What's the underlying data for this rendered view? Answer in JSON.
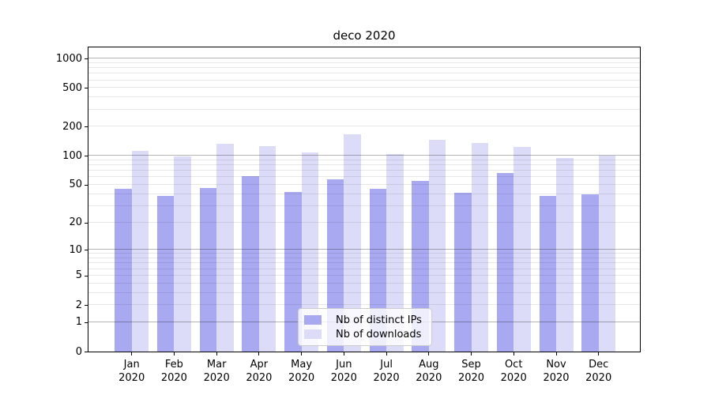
{
  "chart_data": {
    "type": "bar",
    "title": "deco 2020",
    "categories": [
      "Jan 2020",
      "Feb 2020",
      "Mar 2020",
      "Apr 2020",
      "May 2020",
      "Jun 2020",
      "Jul 2020",
      "Aug 2020",
      "Sep 2020",
      "Oct 2020",
      "Nov 2020",
      "Dec 2020"
    ],
    "series": [
      {
        "name": "Nb of distinct IPs",
        "color": "#a9a9f1",
        "values": [
          45,
          38,
          46,
          61,
          42,
          57,
          45,
          55,
          41,
          66,
          38,
          40
        ]
      },
      {
        "name": "Nb of downloads",
        "color": "#dcdcf8",
        "values": [
          112,
          98,
          133,
          127,
          108,
          168,
          105,
          146,
          137,
          123,
          95,
          100
        ]
      }
    ],
    "yscale": "log1p",
    "ylim": [
      0,
      1300
    ],
    "yticks": [
      0,
      1,
      2,
      5,
      10,
      20,
      50,
      100,
      200,
      500,
      1000
    ],
    "grid_major": [
      1,
      10,
      100,
      1000
    ],
    "legend_position": "lower center",
    "xlabel": "",
    "ylabel": ""
  }
}
